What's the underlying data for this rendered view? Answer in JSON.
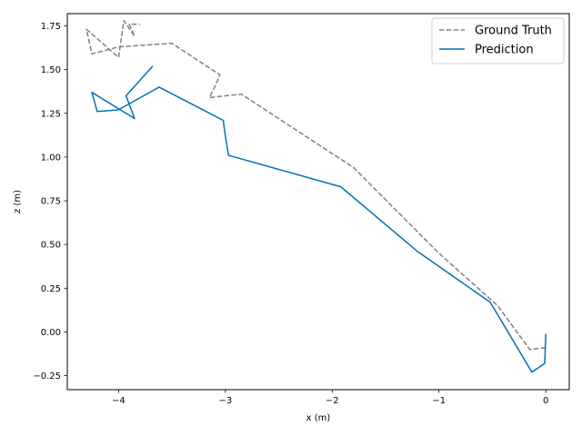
{
  "chart_data": {
    "type": "line",
    "title": "",
    "xlabel": "x (m)",
    "ylabel": "z (m)",
    "xlim": [
      -4.48,
      0.22
    ],
    "ylim": [
      -0.33,
      1.82
    ],
    "xticks": [
      -4,
      -3,
      -2,
      -1,
      0
    ],
    "xtick_labels": [
      "−4",
      "−3",
      "−2",
      "−1",
      "0"
    ],
    "yticks": [
      -0.25,
      0.0,
      0.25,
      0.5,
      0.75,
      1.0,
      1.25,
      1.5,
      1.75
    ],
    "ytick_labels": [
      "−0.25",
      "0.00",
      "0.25",
      "0.50",
      "0.75",
      "1.00",
      "1.25",
      "1.50",
      "1.75"
    ],
    "grid": false,
    "legend_position": "top-right",
    "series": [
      {
        "name": "Ground Truth",
        "color": "#808080",
        "style": "dashed",
        "x": [
          0.0,
          -0.15,
          -0.45,
          -1.0,
          -1.8,
          -2.85,
          -3.15,
          -3.1,
          -3.05,
          -3.5,
          -4.0,
          -4.25,
          -4.3,
          -4.0,
          -3.95,
          -3.85,
          -3.9,
          -3.8
        ],
        "y": [
          -0.09,
          -0.1,
          0.15,
          0.45,
          0.94,
          1.36,
          1.34,
          1.4,
          1.47,
          1.65,
          1.63,
          1.59,
          1.73,
          1.57,
          1.78,
          1.69,
          1.76,
          1.76
        ]
      },
      {
        "name": "Prediction",
        "color": "#0072b2",
        "style": "solid",
        "x": [
          0.0,
          -0.01,
          -0.13,
          -0.52,
          -1.2,
          -1.92,
          -2.97,
          -3.0,
          -3.02,
          -3.62,
          -4.0,
          -4.2,
          -4.25,
          -3.85,
          -3.93,
          -3.68
        ],
        "y": [
          -0.01,
          -0.18,
          -0.23,
          0.17,
          0.46,
          0.83,
          1.01,
          1.12,
          1.21,
          1.4,
          1.27,
          1.26,
          1.37,
          1.22,
          1.35,
          1.52
        ]
      }
    ]
  }
}
